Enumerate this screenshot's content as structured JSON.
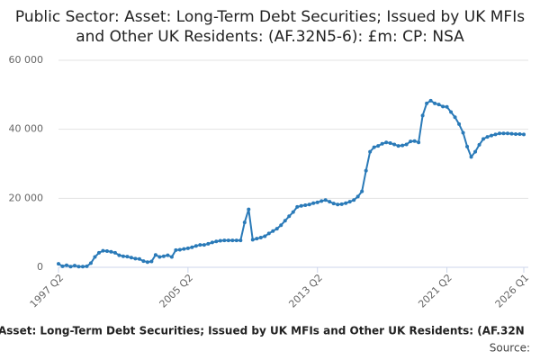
{
  "chart_data": {
    "type": "line",
    "title": "Public Sector: Asset: Long-Term Debt Securities; Issued by UK MFIs and Other UK Residents: (AF.32N5-6): £m: CP: NSA",
    "caption": "Asset: Long-Term Debt Securities; Issued by UK MFIs and Other UK Residents: (AF.32N",
    "source": "Source:",
    "categories": [
      "1997 Q2",
      null,
      null,
      null,
      null,
      null,
      null,
      null,
      null,
      null,
      null,
      null,
      null,
      null,
      null,
      null,
      null,
      null,
      null,
      null,
      null,
      null,
      null,
      null,
      null,
      null,
      null,
      null,
      null,
      null,
      null,
      null,
      "2005 Q2",
      null,
      null,
      null,
      null,
      null,
      null,
      null,
      null,
      null,
      null,
      null,
      null,
      null,
      null,
      null,
      null,
      null,
      null,
      null,
      null,
      null,
      null,
      null,
      null,
      null,
      null,
      null,
      null,
      null,
      null,
      null,
      "2013 Q2",
      null,
      null,
      null,
      null,
      null,
      null,
      null,
      null,
      null,
      null,
      null,
      null,
      null,
      null,
      null,
      null,
      null,
      null,
      null,
      null,
      null,
      null,
      null,
      null,
      null,
      null,
      null,
      null,
      null,
      null,
      null,
      "2021 Q2",
      null,
      null,
      null,
      null,
      null,
      null,
      null,
      null,
      null,
      null,
      null,
      null,
      null,
      null,
      null,
      null,
      null,
      null,
      "2026 Q1"
    ],
    "series": [
      {
        "color": "#2a7ab8",
        "values": [
          1000,
          300,
          600,
          200,
          500,
          200,
          200,
          300,
          1200,
          3000,
          4200,
          4800,
          4700,
          4500,
          4200,
          3500,
          3200,
          3100,
          2800,
          2500,
          2400,
          1800,
          1500,
          1700,
          3600,
          3000,
          3200,
          3500,
          3000,
          5000,
          5100,
          5300,
          5500,
          5800,
          6200,
          6500,
          6500,
          6800,
          7200,
          7500,
          7700,
          7800,
          7800,
          7800,
          7800,
          7800,
          13000,
          16800,
          8000,
          8300,
          8600,
          9000,
          9800,
          10500,
          11200,
          12200,
          13500,
          14800,
          16000,
          17500,
          17800,
          18000,
          18200,
          18600,
          18800,
          19200,
          19500,
          19000,
          18500,
          18200,
          18300,
          18600,
          19000,
          19500,
          20500,
          22000,
          28000,
          33500,
          34800,
          35200,
          35800,
          36200,
          36000,
          35600,
          35200,
          35300,
          35600,
          36500,
          36600,
          36200,
          44000,
          47500,
          48300,
          47500,
          47200,
          46600,
          46500,
          45000,
          43500,
          41500,
          39000,
          35000,
          32000,
          33500,
          35500,
          37200,
          37800,
          38200,
          38500,
          38800,
          38800,
          38800,
          38700,
          38600,
          38600,
          38500
        ]
      }
    ],
    "ylim": [
      0,
      60000
    ],
    "yticks": [
      0,
      {
        "value": 20000,
        "label": "20 000"
      },
      {
        "value": 40000,
        "label": "40 000"
      },
      {
        "value": 60000,
        "label": "60 000"
      }
    ],
    "grid": true
  }
}
